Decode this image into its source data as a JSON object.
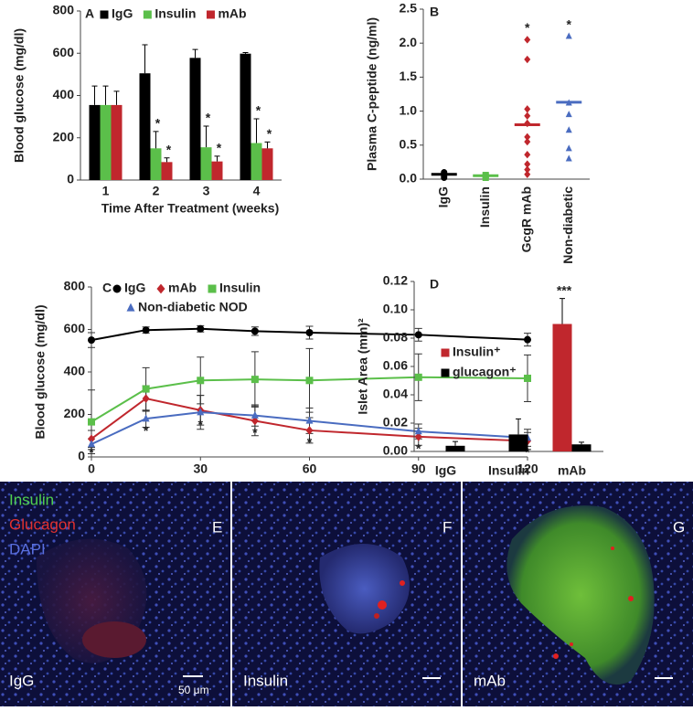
{
  "chart_data": [
    {
      "type": "bar",
      "panel": "A",
      "y_label": "Blood glucose (mg/dl)",
      "x_label": "Time After Treatment (weeks)",
      "categories": [
        "1",
        "2",
        "3",
        "4"
      ],
      "ylim": [
        0,
        800
      ],
      "yticks": [
        0,
        200,
        400,
        600,
        800
      ],
      "legend": "top",
      "series": [
        {
          "name": "IgG",
          "color": "#000000",
          "values": [
            355,
            505,
            578,
            598
          ],
          "errors": [
            90,
            135,
            40,
            5
          ]
        },
        {
          "name": "Insulin",
          "color": "#5bbf4a",
          "values": [
            355,
            150,
            155,
            175
          ],
          "errors": [
            90,
            80,
            100,
            115
          ],
          "significance": [
            null,
            "*",
            "*",
            "*"
          ]
        },
        {
          "name": "mAb",
          "color": "#c0272d",
          "values": [
            355,
            85,
            88,
            150
          ],
          "errors": [
            65,
            20,
            25,
            30
          ],
          "significance": [
            null,
            "*",
            "*",
            "*"
          ]
        }
      ]
    },
    {
      "type": "strip",
      "panel": "B",
      "y_label": "Plasma C-peptide (ng/ml)",
      "categories": [
        "IgG",
        "Insulin",
        "GcgR mAb",
        "Non-diabetic"
      ],
      "ylim": [
        0,
        2.5
      ],
      "yticks": [
        {
          "value": 0,
          "label": "0.0"
        },
        0.5,
        {
          "value": 1,
          "label": "1.0"
        },
        1.5,
        {
          "value": 2,
          "label": "2.0"
        },
        2.5
      ],
      "colors": [
        "#000000",
        "#5bbf4a",
        "#c0272d",
        "#4a6cc0"
      ],
      "markers": [
        "circle",
        "square",
        "diamond",
        "triangle"
      ],
      "points": [
        [
          0.1,
          0.08,
          0.06,
          0.04,
          0.02
        ],
        [
          0.06,
          0.04,
          0.02
        ],
        [
          2.05,
          1.76,
          1.03,
          0.93,
          0.82,
          0.62,
          0.55,
          0.36,
          0.22,
          0.14,
          0.07
        ],
        [
          2.1,
          1.12,
          0.95,
          0.72,
          0.45,
          0.3
        ]
      ],
      "means": [
        0.07,
        0.05,
        0.8,
        1.13
      ],
      "significance": [
        null,
        null,
        "*",
        "*"
      ]
    },
    {
      "type": "line",
      "panel": "C",
      "y_label": "Blood glucose (mg/dl)",
      "x": [
        0,
        15,
        30,
        45,
        60,
        90,
        120
      ],
      "xlim": [
        0,
        120
      ],
      "xticks": [
        0,
        30,
        60,
        90,
        120
      ],
      "ylim": [
        0,
        800
      ],
      "yticks": [
        0,
        200,
        400,
        600,
        800
      ],
      "legend": "top",
      "series": [
        {
          "name": "IgG",
          "color": "#000000",
          "marker": "circle",
          "values": [
            550,
            597,
            603,
            592,
            585,
            575,
            552
          ],
          "errors": [
            35,
            15,
            15,
            20,
            30,
            30,
            30
          ]
        },
        {
          "name": "mAb",
          "color": "#c0272d",
          "marker": "diamond",
          "values": [
            85,
            275,
            220,
            170,
            125,
            95,
            75
          ],
          "errors": [
            40,
            60,
            70,
            70,
            60,
            40,
            40
          ]
        },
        {
          "name": "Insulin",
          "color": "#5bbf4a",
          "marker": "square",
          "values": [
            165,
            320,
            360,
            365,
            360,
            375,
            370
          ],
          "errors": [
            150,
            100,
            110,
            130,
            150,
            110,
            110
          ]
        },
        {
          "name": "Non-diabetic NOD",
          "color": "#4a6cc0",
          "marker": "triangle",
          "values": [
            60,
            180,
            210,
            195,
            170,
            120,
            90
          ],
          "errors": [
            25,
            40,
            80,
            50,
            60,
            35,
            40
          ]
        }
      ],
      "significance": [
        "*",
        "*",
        "*",
        "*",
        "*",
        "*",
        "*"
      ]
    },
    {
      "type": "bar",
      "panel": "D",
      "y_label": "Islet Area (mm)²",
      "categories": [
        "IgG",
        "Insulin",
        "mAb"
      ],
      "ylim": [
        0,
        0.12
      ],
      "yticks": [
        {
          "value": 0,
          "label": "0.00"
        },
        0.02,
        0.04,
        0.06,
        0.08,
        {
          "value": 0.1,
          "label": "0.10"
        },
        0.12
      ],
      "legend": "center-left",
      "series": [
        {
          "name": "Insulin⁺",
          "color": "#c0272d",
          "values": [
            0,
            0,
            0.09
          ],
          "errors": [
            null,
            null,
            0.018
          ],
          "significance": [
            null,
            null,
            "***"
          ]
        },
        {
          "name": "glucagon⁺",
          "color": "#000000",
          "values": [
            0.004,
            0.012,
            0.005
          ],
          "errors": [
            0.003,
            0.011,
            0.0015
          ]
        }
      ]
    }
  ],
  "micrographs": {
    "stain_legend": [
      "Insulin",
      "Glucagon",
      "DAPI"
    ],
    "panels": [
      {
        "letter": "E",
        "label": "IgG",
        "scale": "50 μm"
      },
      {
        "letter": "F",
        "label": "Insulin"
      },
      {
        "letter": "G",
        "label": "mAb"
      }
    ]
  }
}
